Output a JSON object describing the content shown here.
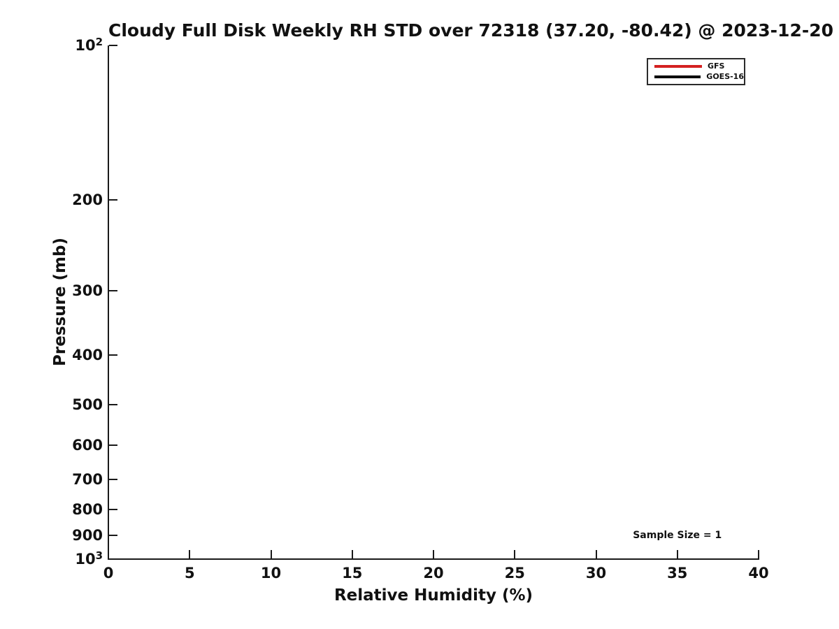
{
  "chart_data": {
    "type": "line",
    "title": "Cloudy Full Disk Weekly RH STD over 72318 (37.20, -80.42) @ 2023-12-20",
    "xlabel": "Relative Humidity (%)",
    "ylabel": "Pressure (mb)",
    "xlim": [
      0,
      40
    ],
    "x_ticks": [
      0,
      5,
      10,
      15,
      20,
      25,
      30,
      35,
      40
    ],
    "yscale": "log",
    "ylim": [
      100,
      1000
    ],
    "y_axis_orientation": "pressure 100 mb at top, 1000 mb at bottom",
    "y_ticks": [
      {
        "value": 100,
        "label_base": "10",
        "label_exp": "2"
      },
      {
        "value": 200,
        "label": "200"
      },
      {
        "value": 300,
        "label": "300"
      },
      {
        "value": 400,
        "label": "400"
      },
      {
        "value": 500,
        "label": "500"
      },
      {
        "value": 600,
        "label": "600"
      },
      {
        "value": 700,
        "label": "700"
      },
      {
        "value": 800,
        "label": "800"
      },
      {
        "value": 900,
        "label": "900"
      },
      {
        "value": 1000,
        "label_base": "10",
        "label_exp": "3"
      }
    ],
    "grid": false,
    "legend": {
      "position": "upper right",
      "entries": [
        "GFS",
        "GOES-16"
      ]
    },
    "series": [
      {
        "name": "GFS",
        "color": "#d42121",
        "x": [],
        "y": []
      },
      {
        "name": "GOES-16",
        "color": "#000000",
        "x": [],
        "y": []
      }
    ],
    "annotation": {
      "text": "Sample Size = 1",
      "x": 35,
      "pressure_mb": 900
    },
    "colors": {
      "text": "#111111",
      "axis": "#1a1a1a",
      "background": "#ffffff"
    }
  }
}
